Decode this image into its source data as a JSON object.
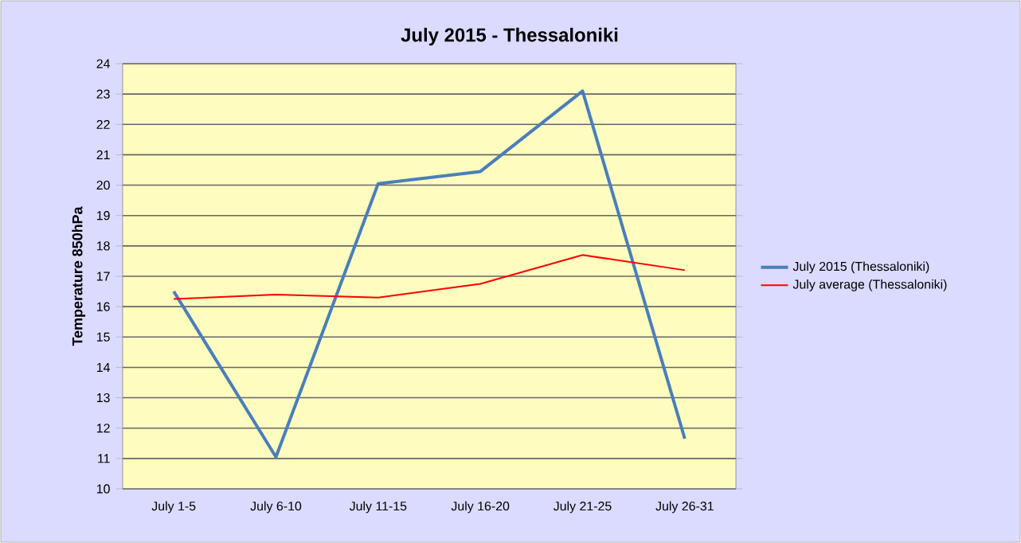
{
  "chart_data": {
    "type": "line",
    "title": "July 2015 - Thessaloniki",
    "ylabel": "Temperature 850hPa",
    "categories": [
      "July 1-5",
      "July 6-10",
      "July 11-15",
      "July 16-20",
      "July 21-25",
      "July 26-31"
    ],
    "series": [
      {
        "name": "July 2015 (Thessaloniki)",
        "color": "#4a7ebb",
        "values": [
          16.5,
          11.05,
          20.05,
          20.45,
          23.1,
          11.65
        ]
      },
      {
        "name": "July average (Thessaloniki)",
        "color": "#ff0000",
        "values": [
          16.25,
          16.4,
          16.3,
          16.75,
          17.7,
          17.2
        ]
      }
    ],
    "ylim": [
      10,
      24
    ],
    "yticks": [
      10,
      11,
      12,
      13,
      14,
      15,
      16,
      17,
      18,
      19,
      20,
      21,
      22,
      23,
      24
    ],
    "grid": "y",
    "legend": "right",
    "marker": "none",
    "line_style": "solid"
  }
}
